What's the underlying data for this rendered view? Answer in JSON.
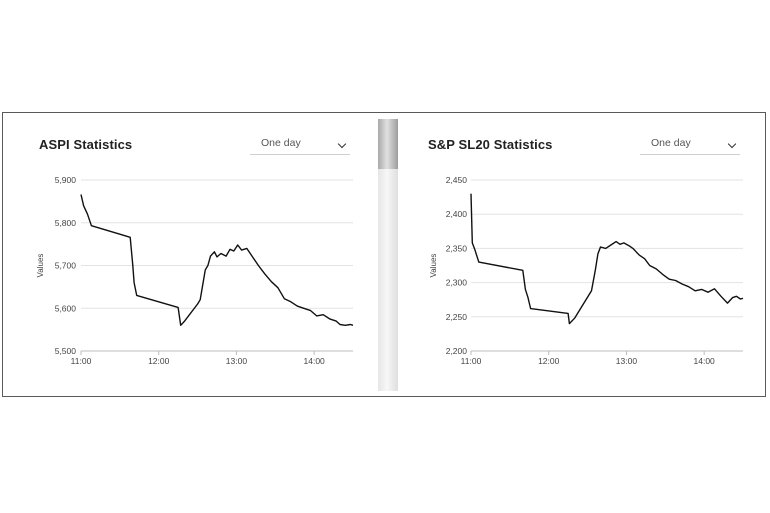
{
  "panels": [
    {
      "title": "ASPI Statistics",
      "period": "One day"
    },
    {
      "title": "S&P SL20 Statistics",
      "period": "One day"
    }
  ],
  "chart_data": [
    {
      "type": "line",
      "title": "ASPI Statistics",
      "xlabel": "",
      "ylabel": "Values",
      "ylim": [
        5500,
        5900
      ],
      "xlim": [
        "11:00",
        "14:30"
      ],
      "yticks": [
        5500,
        5600,
        5700,
        5800,
        5900
      ],
      "ytick_labels": [
        "5,500",
        "5,600",
        "5,700",
        "5,800",
        "5,900"
      ],
      "xticks": [
        "11:00",
        "12:00",
        "13:00",
        "14:00"
      ],
      "grid": "horizontal",
      "series": [
        {
          "x": [
            "11:00",
            "11:02",
            "11:05",
            "11:08",
            "11:38",
            "11:40",
            "11:41",
            "11:43",
            "12:15",
            "12:17",
            "12:20",
            "12:30",
            "12:32",
            "12:36",
            "12:38",
            "12:40",
            "12:43",
            "12:45",
            "12:48",
            "12:52",
            "12:55",
            "12:58",
            "13:01",
            "13:04",
            "13:08",
            "13:12",
            "13:17",
            "13:22",
            "13:27",
            "13:32",
            "13:37",
            "13:42",
            "13:47",
            "13:52",
            "13:57",
            "14:02",
            "14:07",
            "14:12",
            "14:17",
            "14:20",
            "14:24",
            "14:28",
            "14:30"
          ],
          "y": [
            5866,
            5840,
            5820,
            5793,
            5766,
            5700,
            5660,
            5630,
            5602,
            5560,
            5570,
            5610,
            5620,
            5690,
            5700,
            5722,
            5732,
            5720,
            5728,
            5722,
            5738,
            5734,
            5748,
            5736,
            5740,
            5722,
            5700,
            5680,
            5662,
            5648,
            5622,
            5615,
            5605,
            5600,
            5595,
            5582,
            5585,
            5575,
            5570,
            5562,
            5560,
            5562,
            5560
          ]
        }
      ]
    },
    {
      "type": "line",
      "title": "S&P SL20 Statistics",
      "xlabel": "",
      "ylabel": "Values",
      "ylim": [
        2200,
        2450
      ],
      "xlim": [
        "11:00",
        "14:30"
      ],
      "yticks": [
        2200,
        2250,
        2300,
        2350,
        2400,
        2450
      ],
      "ytick_labels": [
        "2,200",
        "2,250",
        "2,300",
        "2,350",
        "2,400",
        "2,450"
      ],
      "xticks": [
        "11:00",
        "12:00",
        "13:00",
        "14:00"
      ],
      "grid": "horizontal",
      "series": [
        {
          "x": [
            "11:00",
            "11:01",
            "11:03",
            "11:06",
            "11:40",
            "11:42",
            "11:44",
            "11:46",
            "12:15",
            "12:16",
            "12:20",
            "12:33",
            "12:36",
            "12:38",
            "12:40",
            "12:44",
            "12:48",
            "12:52",
            "12:55",
            "12:58",
            "13:02",
            "13:05",
            "13:10",
            "13:14",
            "13:18",
            "13:23",
            "13:28",
            "13:33",
            "13:38",
            "13:43",
            "13:48",
            "13:53",
            "13:58",
            "14:03",
            "14:08",
            "14:13",
            "14:18",
            "14:22",
            "14:25",
            "14:28",
            "14:30"
          ],
          "y": [
            2430,
            2358,
            2348,
            2330,
            2318,
            2290,
            2278,
            2262,
            2255,
            2240,
            2248,
            2288,
            2318,
            2342,
            2352,
            2350,
            2355,
            2360,
            2356,
            2358,
            2354,
            2350,
            2340,
            2335,
            2325,
            2320,
            2312,
            2305,
            2303,
            2298,
            2294,
            2288,
            2290,
            2286,
            2291,
            2280,
            2270,
            2278,
            2280,
            2276,
            2277
          ]
        }
      ]
    }
  ]
}
